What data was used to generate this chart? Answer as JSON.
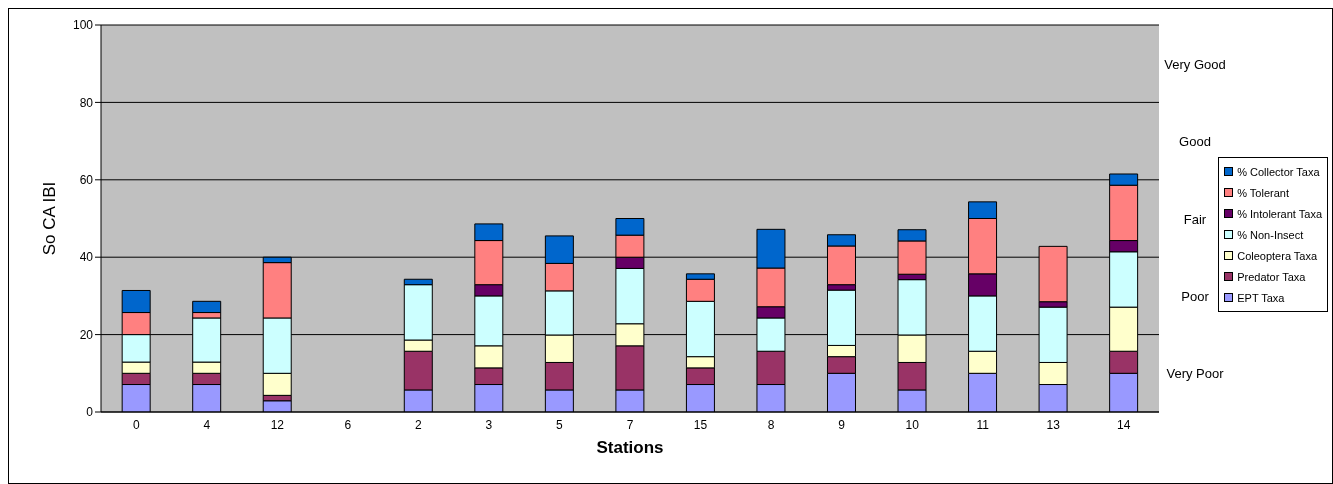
{
  "chart_data": {
    "type": "bar",
    "stacked": true,
    "xlabel": "Stations",
    "ylabel": "So CA IBI",
    "categories": [
      "0",
      "4",
      "12",
      "6",
      "2",
      "3",
      "5",
      "7",
      "15",
      "8",
      "9",
      "10",
      "11",
      "13",
      "14"
    ],
    "ylim": [
      0,
      100
    ],
    "yticks": [
      0,
      20,
      40,
      60,
      80,
      100
    ],
    "grid": "y",
    "legend": "right",
    "series": [
      {
        "name": "EPT Taxa",
        "color": "#9999ff",
        "values": [
          7.1,
          7.1,
          2.9,
          0,
          5.7,
          7.1,
          5.7,
          5.7,
          7.1,
          7.1,
          10,
          5.7,
          10,
          7.1,
          10
        ]
      },
      {
        "name": "Predator Taxa",
        "color": "#993366",
        "values": [
          2.9,
          2.9,
          1.4,
          0,
          10,
          4.3,
          7.1,
          11.4,
          4.3,
          8.6,
          4.3,
          7.1,
          0,
          0,
          5.7
        ]
      },
      {
        "name": "Coleoptera Taxa",
        "color": "#ffffcc",
        "values": [
          2.9,
          2.9,
          5.7,
          0,
          2.9,
          5.7,
          7.1,
          5.7,
          2.9,
          0,
          2.9,
          7.1,
          5.7,
          5.7,
          11.4
        ]
      },
      {
        "name": "% Non-Insect",
        "color": "#ccffff",
        "values": [
          7.1,
          11.4,
          14.3,
          0,
          14.3,
          12.9,
          11.4,
          14.3,
          14.3,
          8.6,
          14.3,
          14.3,
          14.3,
          14.3,
          14.3
        ]
      },
      {
        "name": "% Intolerant Taxa",
        "color": "#660066",
        "values": [
          0,
          0,
          0,
          0,
          0,
          2.9,
          0,
          2.9,
          0,
          2.9,
          1.4,
          1.4,
          5.7,
          1.4,
          2.9
        ]
      },
      {
        "name": "% Tolerant",
        "color": "#ff8080",
        "values": [
          5.7,
          1.4,
          14.3,
          0,
          0,
          11.4,
          7.1,
          5.7,
          5.7,
          10,
          10,
          8.6,
          14.3,
          14.3,
          14.3
        ]
      },
      {
        "name": "% Collector Taxa",
        "color": "#0066cc",
        "values": [
          5.7,
          2.9,
          1.4,
          0,
          1.4,
          4.3,
          7.1,
          4.3,
          1.4,
          10,
          2.9,
          2.9,
          4.3,
          0,
          2.9
        ]
      }
    ],
    "annotations": [
      "Very Good",
      "Good",
      "Fair",
      "Poor",
      "Very Poor"
    ]
  }
}
